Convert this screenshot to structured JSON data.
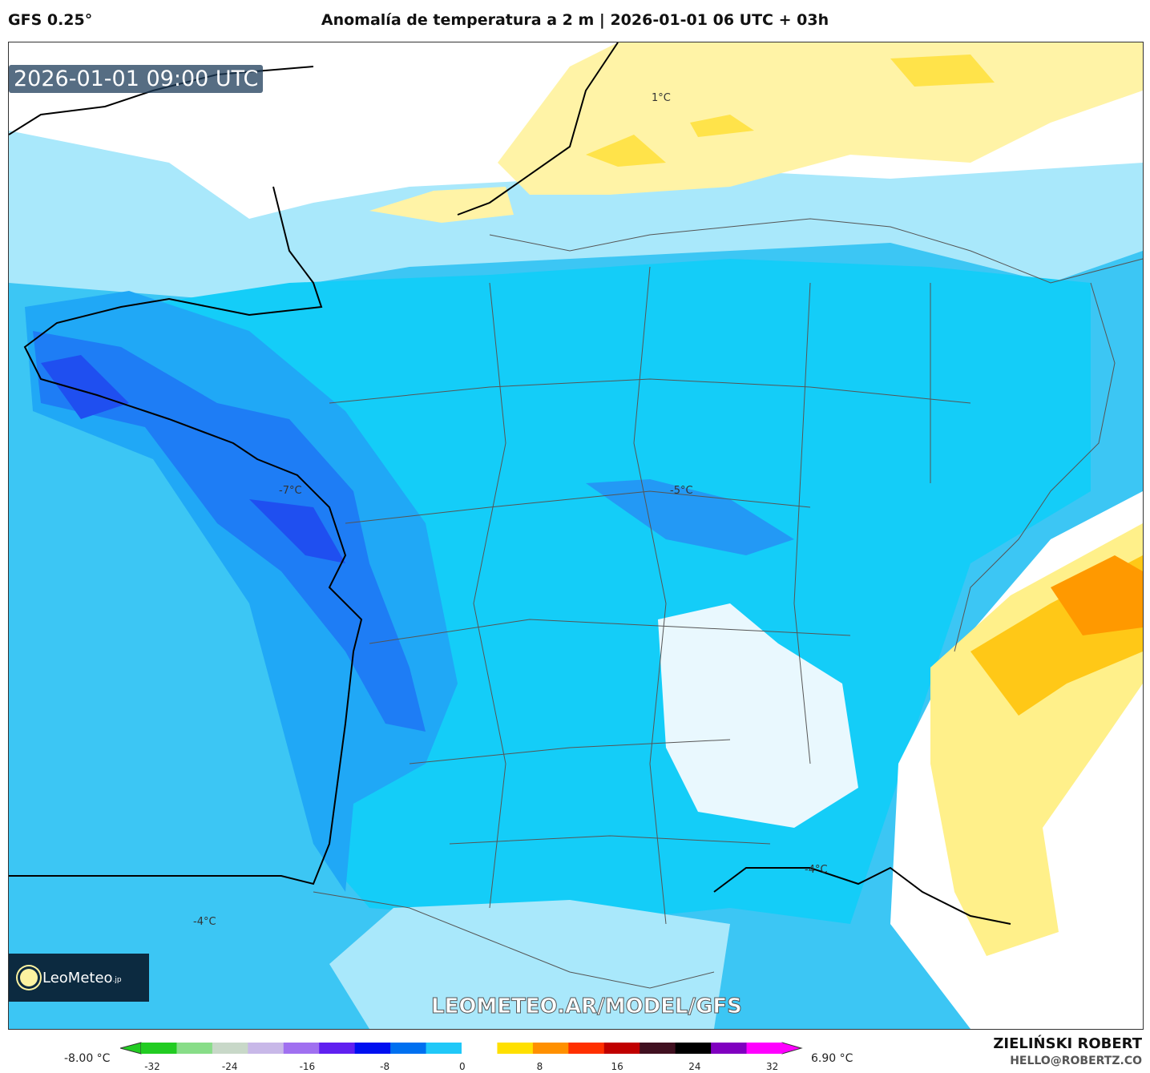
{
  "header": {
    "model": "GFS 0.25°",
    "title": "Anomalía de temperatura a 2 m | 2026-01-01 06 UTC + 03h"
  },
  "map": {
    "valid_time": "2026-01-01 09:00 UTC",
    "labels": [
      "1°C",
      "-7°C",
      "-5°C",
      "-4°C",
      "-4°C"
    ],
    "watermark": "LEOMETEO.AR/MODEL/GFS",
    "logo": {
      "name": "LeoMeteo",
      "suffix": ".jp"
    }
  },
  "colorbar": {
    "min_label": "-8.00 °C",
    "max_label": "6.90 °C",
    "ticks": [
      "-32",
      "-24",
      "-16",
      "-8",
      "0",
      "8",
      "16",
      "24",
      "32"
    ],
    "colors": [
      "#22cc22",
      "#88dd88",
      "#c8d8c8",
      "#c8b8e8",
      "#a070f0",
      "#6020f0",
      "#0010f0",
      "#0070f0",
      "#20c8f8",
      "#ffffff",
      "#ffe000",
      "#ff9000",
      "#ff3000",
      "#c00000",
      "#401020",
      "#000000",
      "#8000c0",
      "#ff00ff"
    ]
  },
  "footer": {
    "author": "ZIELIŃSKI ROBERT",
    "email": "HELLO@ROBERTZ.CO"
  }
}
